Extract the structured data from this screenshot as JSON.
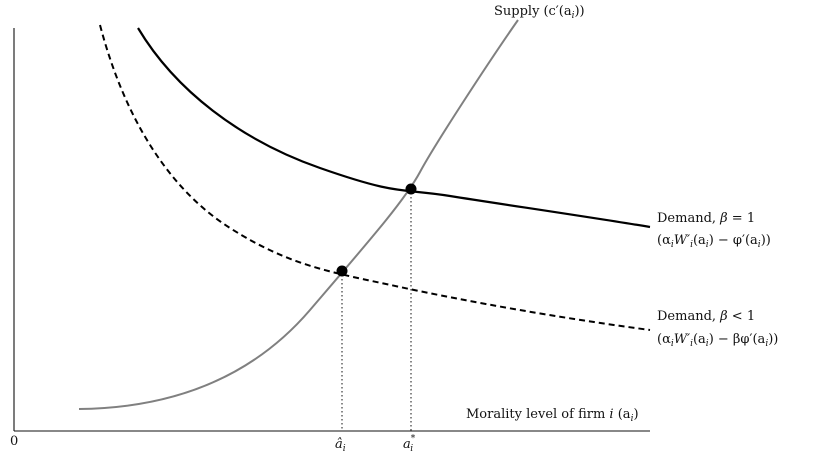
{
  "axes": {
    "origin_label": "0",
    "x_label_text": "Morality level of firm ",
    "x_label_var": "i",
    "x_label_paren": " (a",
    "x_label_sub": "i",
    "x_label_close": ")"
  },
  "ticks": {
    "a_hat": "â",
    "a_hat_sub": "i",
    "a_star": "a",
    "a_star_sup": "*",
    "a_star_sub": "i"
  },
  "supply": {
    "name": "Supply",
    "formula_open": "(c′(a",
    "formula_sub": "i",
    "formula_close": "))"
  },
  "demand_full": {
    "name": "Demand, ",
    "beta": "β",
    "relation": " = 1",
    "formula_a": "(α",
    "formula_a_sub": "i",
    "formula_b": "W′",
    "formula_b_sub": "i",
    "formula_c": "(a",
    "formula_c_sub": "i",
    "formula_d": ") − φ′(a",
    "formula_d_sub": "i",
    "formula_e": "))"
  },
  "demand_partial": {
    "name": "Demand, ",
    "beta": "β",
    "relation": " < 1",
    "formula_a": "(α",
    "formula_a_sub": "i",
    "formula_b": "W′",
    "formula_b_sub": "i",
    "formula_c": "(a",
    "formula_c_sub": "i",
    "formula_d": ") − βφ′(a",
    "formula_d_sub": "i",
    "formula_e": "))"
  },
  "colors": {
    "supply": "#808080",
    "demand": "#000000",
    "axis": "#111111"
  }
}
